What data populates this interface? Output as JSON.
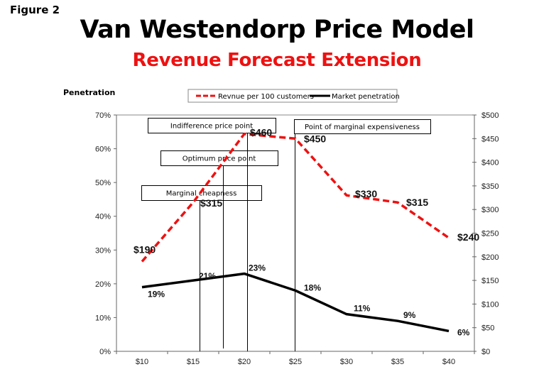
{
  "figure_label": "Figure 2",
  "title": "Van Westendorp Price Model",
  "subtitle": "Revenue Forecast Extension",
  "chart_data": {
    "type": "line",
    "title": "Van Westendorp Price Model",
    "subtitle": "Revenue Forecast Extension",
    "categories": [
      "$10",
      "$15",
      "$20",
      "$25",
      "$30",
      "$35",
      "$40"
    ],
    "x": [
      10,
      15,
      20,
      25,
      30,
      35,
      40
    ],
    "xlabel": "",
    "ylabel_left": "Penetration",
    "ylabel_right": "",
    "ylim_left": [
      0,
      70
    ],
    "ylim_right": [
      0,
      500
    ],
    "yticks_left": [
      "0%",
      "10%",
      "20%",
      "30%",
      "40%",
      "50%",
      "60%",
      "70%"
    ],
    "yticks_right": [
      "$0",
      "$50",
      "$100",
      "$150",
      "$200",
      "$250",
      "$300",
      "$350",
      "$400",
      "$450",
      "$500"
    ],
    "grid": false,
    "legend_position": "top",
    "series": [
      {
        "name": "Revnue per 100 customers",
        "axis": "right",
        "style": "dashed",
        "color": "#ee1111",
        "values": [
          190,
          315,
          460,
          450,
          330,
          315,
          240
        ],
        "labels": [
          "$190",
          "$315",
          "$460",
          "$450",
          "$330",
          "$315",
          "$240"
        ]
      },
      {
        "name": "Market penetration",
        "axis": "left",
        "style": "solid",
        "color": "#000000",
        "values": [
          19,
          21,
          23,
          18,
          11,
          9,
          6
        ],
        "labels": [
          "19%",
          "21%",
          "23%",
          "18%",
          "11%",
          "9%",
          "6%"
        ]
      }
    ],
    "annotations": [
      {
        "label": "Marginal cheapness",
        "price": 15.6
      },
      {
        "label": "Optimum price point",
        "price": 17.9
      },
      {
        "label": "Indifference price point",
        "price": 20.3
      },
      {
        "label": "Point of marginal expensiveness",
        "price": 24.9
      }
    ]
  }
}
